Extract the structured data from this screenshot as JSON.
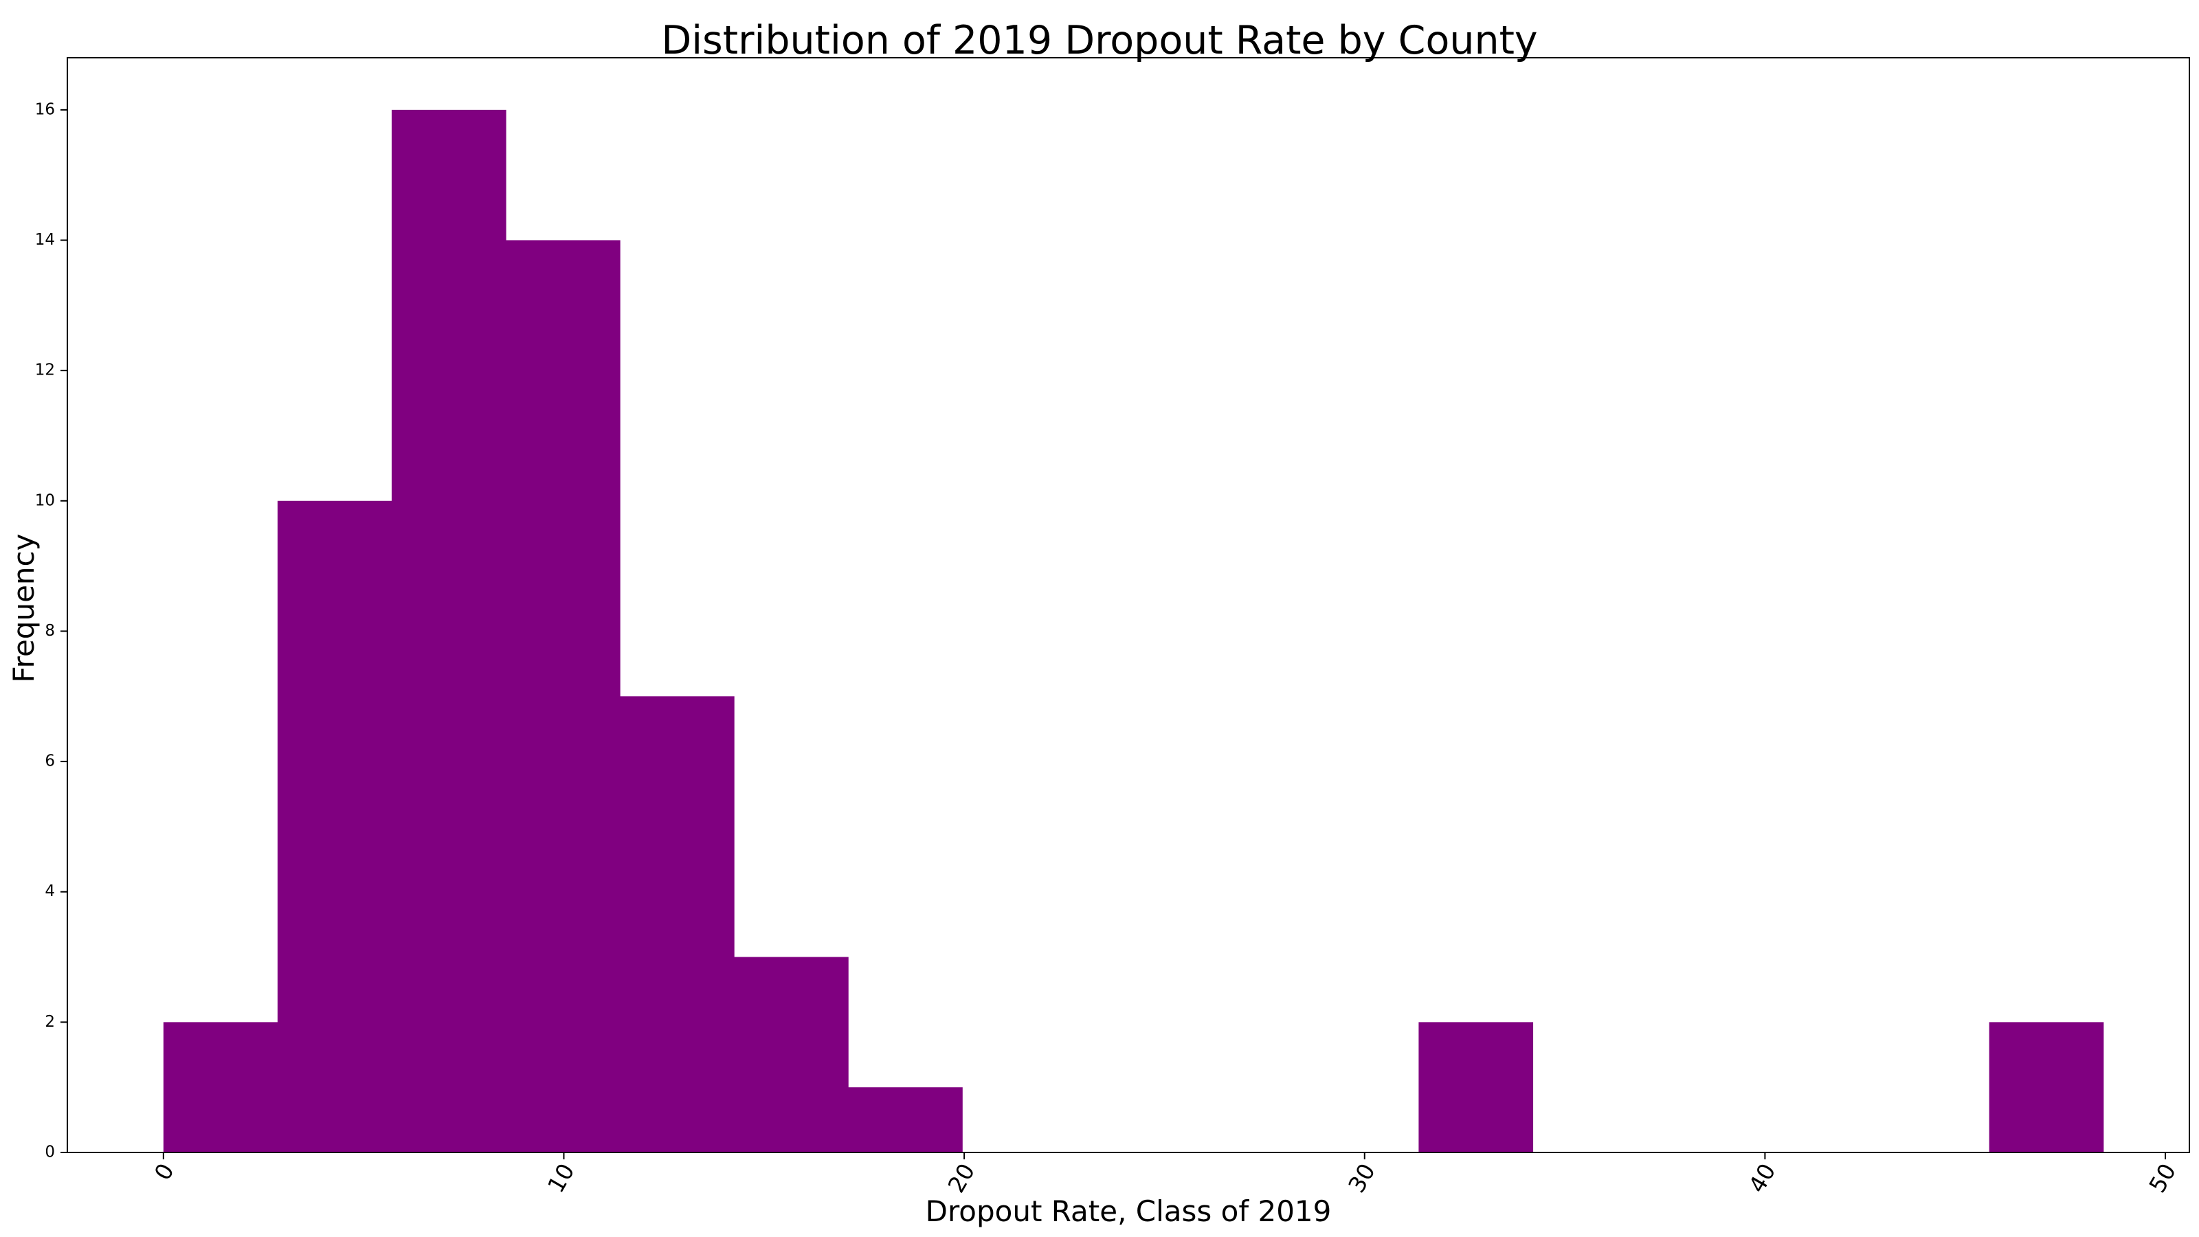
{
  "chart_data": {
    "type": "bar",
    "title": "Distribution of 2019 Dropout Rate by County",
    "xlabel": "Dropout Rate, Class of 2019",
    "ylabel": "Frequency",
    "bar_color": "#800080",
    "bin_edges": [
      0.0,
      2.85,
      5.7,
      8.55,
      11.4,
      14.25,
      17.1,
      19.95,
      22.8,
      25.65,
      28.5,
      31.35,
      34.2,
      37.05,
      39.9,
      42.75,
      45.6,
      48.45
    ],
    "values": [
      2,
      10,
      16,
      14,
      7,
      3,
      1,
      0,
      0,
      0,
      0,
      2,
      0,
      0,
      0,
      0,
      2
    ],
    "xlim": [
      -2.4,
      50.6
    ],
    "ylim": [
      0,
      16.8
    ],
    "x_ticks": [
      0,
      10,
      20,
      30,
      40,
      50
    ],
    "x_tick_labels": [
      "0",
      "10",
      "20",
      "30",
      "40",
      "50"
    ],
    "y_ticks": [
      0,
      2,
      4,
      6,
      8,
      10,
      12,
      14,
      16
    ],
    "y_tick_labels": [
      "0",
      "2",
      "4",
      "6",
      "8",
      "10",
      "12",
      "14",
      "16"
    ],
    "x_tick_rotation": 60,
    "grid": false,
    "legend": "none"
  }
}
